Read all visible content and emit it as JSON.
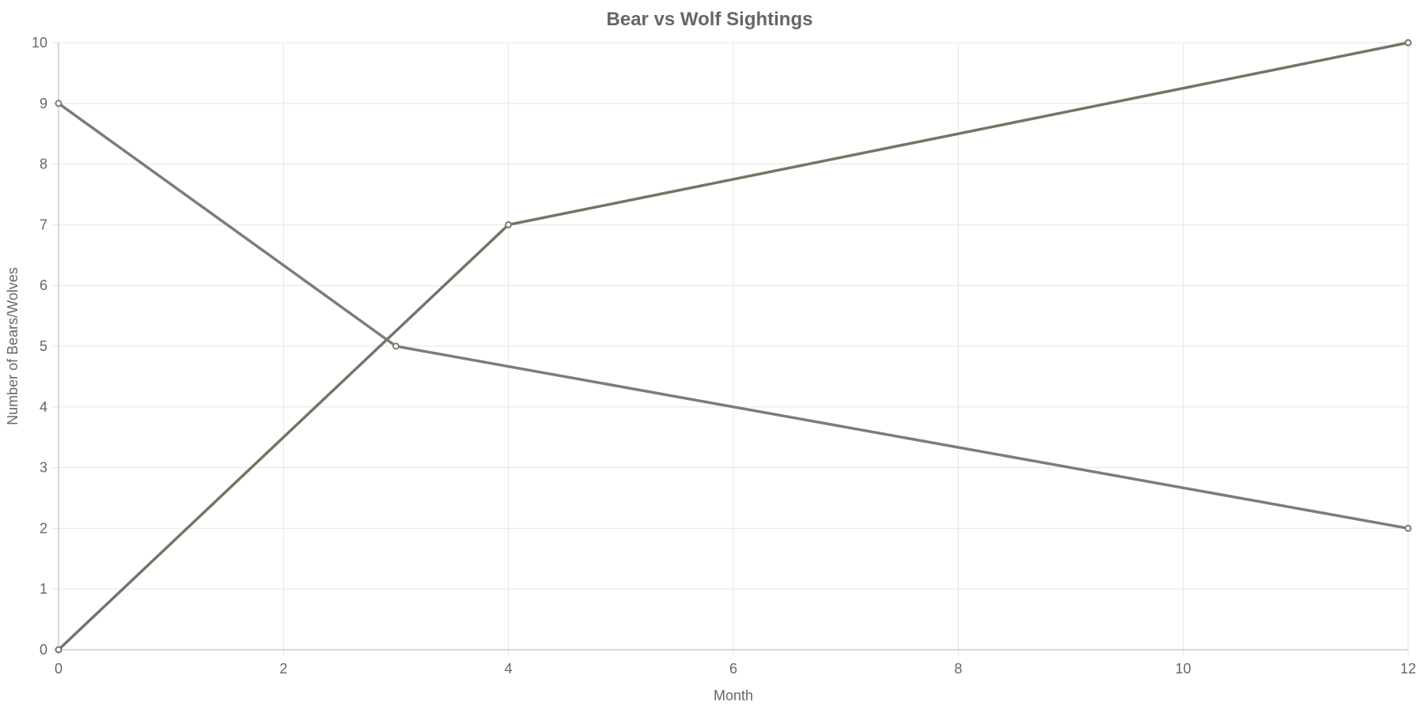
{
  "chart_data": {
    "type": "line",
    "title": "Bear vs Wolf Sightings",
    "xlabel": "Month",
    "ylabel": "Number of Bears/Wolves",
    "xlim": [
      0,
      12
    ],
    "ylim": [
      0,
      10
    ],
    "x_ticks": [
      0,
      2,
      4,
      6,
      8,
      10,
      12
    ],
    "y_ticks": [
      0,
      1,
      2,
      3,
      4,
      5,
      6,
      7,
      8,
      9,
      10
    ],
    "grid": true,
    "series": [
      {
        "points": [
          {
            "x": 0,
            "y": 9
          },
          {
            "x": 3,
            "y": 5
          },
          {
            "x": 12,
            "y": 2
          }
        ],
        "color": "#7f7b79"
      },
      {
        "points": [
          {
            "x": 0,
            "y": 0
          },
          {
            "x": 4,
            "y": 7
          },
          {
            "x": 12,
            "y": 10
          }
        ],
        "color": "#7a7266"
      }
    ]
  }
}
